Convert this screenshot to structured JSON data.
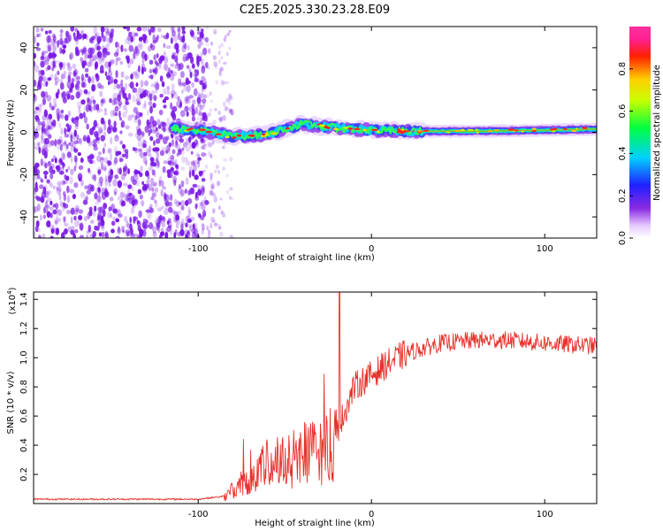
{
  "chart_data": [
    {
      "type": "heatmap",
      "title": "C2E5.2025.330.23.28.E09",
      "xlabel": "Height of straight line (km)",
      "ylabel": "Frequency (Hz)",
      "xlim": [
        -195,
        130
      ],
      "ylim": [
        -50,
        50
      ],
      "x_ticks": [
        -100,
        0,
        100
      ],
      "x_tick_labels": [
        "-100",
        "0",
        "100"
      ],
      "y_ticks": [
        -40,
        -20,
        0,
        20,
        40
      ],
      "y_tick_labels": [
        "-40",
        "-20",
        "0",
        "20",
        "40"
      ],
      "colorbar": {
        "label": "Normalized spectral amplitude",
        "range": [
          0,
          1
        ],
        "ticks": [
          0.0,
          0.2,
          0.4,
          0.6,
          0.8
        ],
        "tick_labels": [
          "0.0",
          "0.2",
          "0.4",
          "0.6",
          "0.8"
        ]
      },
      "ridge": {
        "description_points_x": [
          -115,
          -100,
          -80,
          -60,
          -40,
          -20,
          0,
          20,
          60,
          100,
          130
        ],
        "description_points_y": [
          2,
          1,
          -2,
          -1,
          4,
          2,
          1,
          0.5,
          0.5,
          1,
          1.5
        ]
      }
    },
    {
      "type": "line",
      "xlabel": "Height of straight line (km)",
      "ylabel": "SNR (10 * v/v)",
      "y_multiplier_label": "(x10",
      "y_multiplier_exp": "4",
      "y_multiplier_close": ")",
      "xlim": [
        -195,
        130
      ],
      "ylim": [
        0,
        1.45
      ],
      "x_ticks": [
        -100,
        0,
        100
      ],
      "x_tick_labels": [
        "-100",
        "0",
        "100"
      ],
      "y_ticks": [
        0.2,
        0.4,
        0.6,
        0.8,
        1.0,
        1.2,
        1.4
      ],
      "y_tick_labels": [
        "0.2",
        "0.4",
        "0.6",
        "0.8",
        "1.0",
        "1.2",
        "1.4"
      ],
      "series": [
        {
          "name": "SNR",
          "color": "#e8302a",
          "envelope_x": [
            -195,
            -100,
            -85,
            -75,
            -60,
            -45,
            -30,
            -22,
            -18,
            -10,
            0,
            8,
            20,
            40,
            60,
            80,
            100,
            130
          ],
          "envelope_y": [
            0.03,
            0.03,
            0.05,
            0.15,
            0.3,
            0.35,
            0.4,
            0.45,
            0.55,
            0.8,
            0.88,
            0.95,
            1.03,
            1.1,
            1.12,
            1.12,
            1.1,
            1.08
          ],
          "spike_x": -18.5,
          "spike_y": 1.45
        }
      ]
    }
  ],
  "colors": {
    "noise": "#7a18e6",
    "line": "#e8302a"
  }
}
